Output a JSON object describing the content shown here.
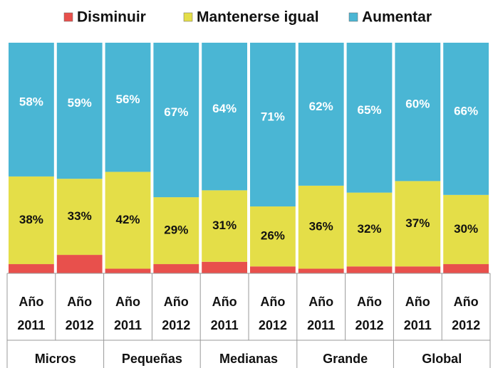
{
  "chart_data": {
    "type": "stacked_bar_100",
    "categories": [
      [
        "Año",
        "2011"
      ],
      [
        "Año",
        "2012"
      ],
      [
        "Año",
        "2011"
      ],
      [
        "Año",
        "2012"
      ],
      [
        "Año",
        "2011"
      ],
      [
        "Año",
        "2012"
      ],
      [
        "Año",
        "2011"
      ],
      [
        "Año",
        "2012"
      ],
      [
        "Año",
        "2011"
      ],
      [
        "Año",
        "2012"
      ]
    ],
    "groups": [
      "Micros",
      "Pequeñas",
      "Medianas",
      "Grande",
      "Global"
    ],
    "ylim": [
      0,
      100
    ],
    "series": [
      {
        "name": "Disminuir",
        "color": "#e8504c",
        "values": [
          4,
          8,
          2,
          4,
          5,
          3,
          2,
          3,
          3,
          4
        ]
      },
      {
        "name": "Mantenerse igual",
        "color": "#e4de48",
        "values": [
          38,
          33,
          42,
          29,
          31,
          26,
          36,
          32,
          37,
          30
        ],
        "value_labels": [
          "38%",
          "33%",
          "42%",
          "29%",
          "31%",
          "26%",
          "36%",
          "32%",
          "37%",
          "30%"
        ]
      },
      {
        "name": "Aumentar",
        "color": "#4ab6d4",
        "values": [
          58,
          59,
          56,
          67,
          64,
          71,
          62,
          65,
          60,
          66
        ],
        "value_labels": [
          "58%",
          "59%",
          "56%",
          "67%",
          "64%",
          "71%",
          "62%",
          "65%",
          "60%",
          "66%"
        ]
      }
    ]
  }
}
